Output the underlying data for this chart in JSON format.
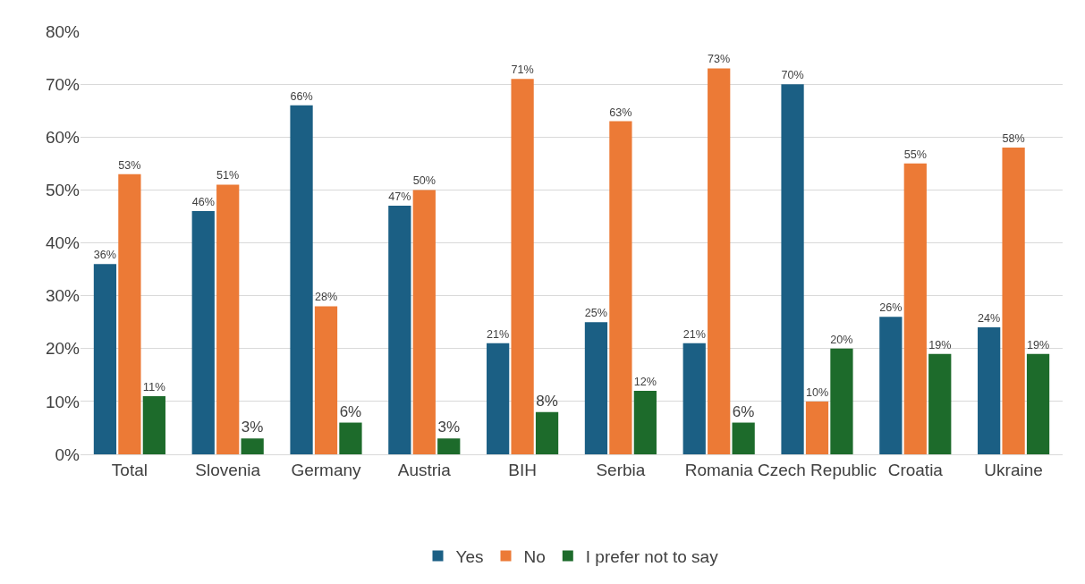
{
  "chart_data": {
    "type": "bar",
    "categories": [
      "Total",
      "Slovenia",
      "Germany",
      "Austria",
      "BIH",
      "Serbia",
      "Romania",
      "Czech Republic",
      "Croatia",
      "Ukraine"
    ],
    "series": [
      {
        "name": "Yes",
        "color": "#1b5f84",
        "values": [
          36,
          46,
          66,
          47,
          21,
          25,
          21,
          70,
          26,
          24
        ],
        "value_labels": [
          "36%",
          "46%",
          "66%",
          "47%",
          "21%",
          "25%",
          "21%",
          "70%",
          "26%",
          "24%"
        ]
      },
      {
        "name": "No",
        "color": "#ec7a36",
        "values": [
          53,
          51,
          28,
          50,
          71,
          63,
          73,
          10,
          55,
          58
        ],
        "value_labels": [
          "53%",
          "51%",
          "28%",
          "50%",
          "71%",
          "63%",
          "73%",
          "10%",
          "55%",
          "58%"
        ]
      },
      {
        "name": "I prefer not to say",
        "color": "#1d6b2b",
        "values": [
          11,
          3,
          6,
          3,
          8,
          12,
          6,
          20,
          19,
          19
        ],
        "value_labels": [
          "11%",
          "3%",
          "6%",
          "3%",
          "8%",
          "12%",
          "6%",
          "20%",
          "19%",
          "19%"
        ]
      }
    ],
    "ylim": [
      0,
      80
    ],
    "yticks": [
      {
        "value": 0,
        "label": "0%"
      },
      {
        "value": 10,
        "label": "10%"
      },
      {
        "value": 20,
        "label": "20%"
      },
      {
        "value": 30,
        "label": "30%"
      },
      {
        "value": 40,
        "label": "40%"
      },
      {
        "value": 50,
        "label": "50%"
      },
      {
        "value": 60,
        "label": "60%"
      },
      {
        "value": 70,
        "label": "70%"
      },
      {
        "value": 80,
        "label": "80%"
      }
    ],
    "grid": "y",
    "legend": "bottom"
  }
}
